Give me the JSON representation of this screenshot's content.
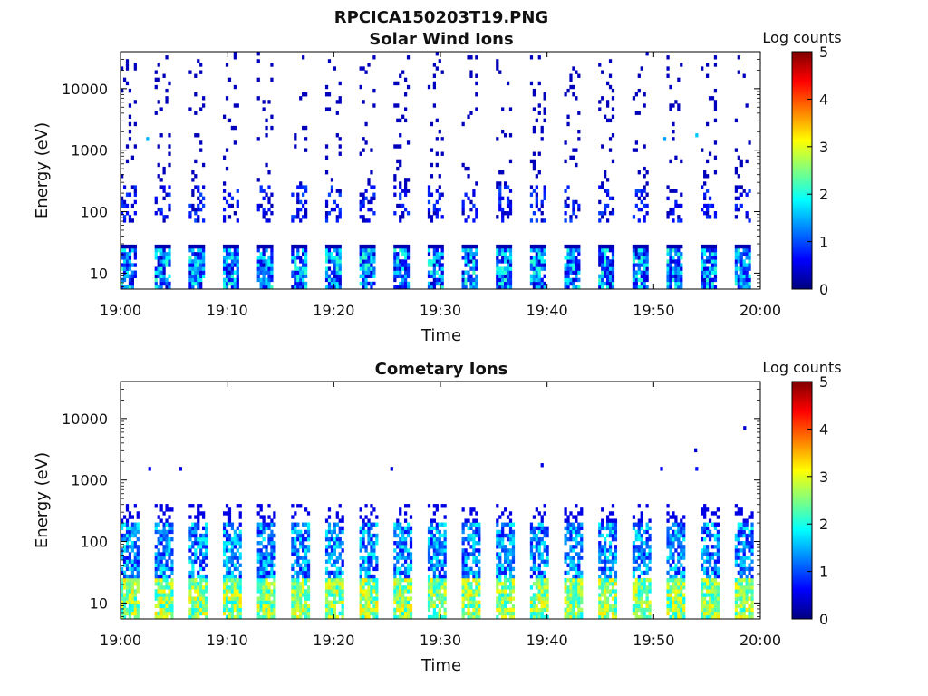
{
  "figure_title": "RPCICA150203T19.PNG",
  "colorbar_colors": [
    "#00007f",
    "#0000ff",
    "#007fff",
    "#00ffff",
    "#7fff7f",
    "#ffff00",
    "#ff7f00",
    "#ff0000",
    "#7f0000"
  ],
  "chart_data": [
    {
      "type": "heatmap",
      "title": "Solar Wind Ions",
      "xlabel": "Time",
      "ylabel": "Energy (eV)",
      "x_range": [
        "19:00",
        "20:00"
      ],
      "x_ticks": [
        "19:00",
        "19:10",
        "19:20",
        "19:30",
        "19:40",
        "19:50",
        "20:00"
      ],
      "y_scale": "log",
      "y_range": [
        5.5,
        40000
      ],
      "y_ticks": [
        {
          "value": 10,
          "label": "10"
        },
        {
          "value": 100,
          "label": "100"
        },
        {
          "value": 1000,
          "label": "1000"
        },
        {
          "value": 10000,
          "label": "10000"
        }
      ],
      "colorbar": {
        "label": "Log counts",
        "min": 0,
        "max": 5,
        "ticks": [
          "0",
          "1",
          "2",
          "3",
          "4",
          "5"
        ]
      },
      "pattern": {
        "sweep_period_min": 3.2,
        "first_sweep_min": 0.0,
        "sweep_width_min": 1.6,
        "low_band_energy_eV": [
          5.5,
          28
        ],
        "low_band_log_counts": [
          0.3,
          2.2
        ],
        "top_edge_energy_eV": 28,
        "cluster_energy_eV": [
          70,
          250
        ],
        "scatter_energy_eV": [
          250,
          40000
        ],
        "scatter_log_counts": 0.3
      },
      "highlights": [
        {
          "time_min": 2.4,
          "energy_eV": 1600,
          "log_counts": 1.5
        },
        {
          "time_min": 50.9,
          "energy_eV": 1500,
          "log_counts": 1.4
        },
        {
          "time_min": 53.9,
          "energy_eV": 1650,
          "log_counts": 1.6
        }
      ]
    },
    {
      "type": "heatmap",
      "title": "Cometary Ions",
      "xlabel": "Time",
      "ylabel": "Energy (eV)",
      "x_range": [
        "19:00",
        "20:00"
      ],
      "x_ticks": [
        "19:00",
        "19:10",
        "19:20",
        "19:30",
        "19:40",
        "19:50",
        "20:00"
      ],
      "y_scale": "log",
      "y_range": [
        5.5,
        40000
      ],
      "y_ticks": [
        {
          "value": 10,
          "label": "10"
        },
        {
          "value": 100,
          "label": "100"
        },
        {
          "value": 1000,
          "label": "1000"
        },
        {
          "value": 10000,
          "label": "10000"
        }
      ],
      "colorbar": {
        "label": "Log counts",
        "min": 0,
        "max": 5,
        "ticks": [
          "0",
          "1",
          "2",
          "3",
          "4",
          "5"
        ]
      },
      "pattern": {
        "sweep_period_min": 3.2,
        "first_sweep_min": 0.0,
        "sweep_width_min": 1.7,
        "low_band_energy_eV": [
          5.5,
          25
        ],
        "low_band_log_counts": [
          1.8,
          3.3
        ],
        "mid_band_energy_eV": [
          25,
          200
        ],
        "mid_band_log_counts": [
          0.6,
          2.0
        ],
        "sparse_energy_eV": [
          200,
          400
        ],
        "sparse_log_counts": 0.5
      },
      "highlights": [
        {
          "time_min": 2.6,
          "energy_eV": 1600,
          "log_counts": 0.6
        },
        {
          "time_min": 5.5,
          "energy_eV": 1600,
          "log_counts": 0.5
        },
        {
          "time_min": 25.3,
          "energy_eV": 1500,
          "log_counts": 0.5
        },
        {
          "time_min": 39.4,
          "energy_eV": 1700,
          "log_counts": 0.5
        },
        {
          "time_min": 50.6,
          "energy_eV": 1600,
          "log_counts": 0.6
        },
        {
          "time_min": 53.9,
          "energy_eV": 1600,
          "log_counts": 0.7
        },
        {
          "time_min": 53.8,
          "energy_eV": 3000,
          "log_counts": 0.4
        },
        {
          "time_min": 58.4,
          "energy_eV": 6800,
          "log_counts": 0.4
        }
      ]
    }
  ]
}
